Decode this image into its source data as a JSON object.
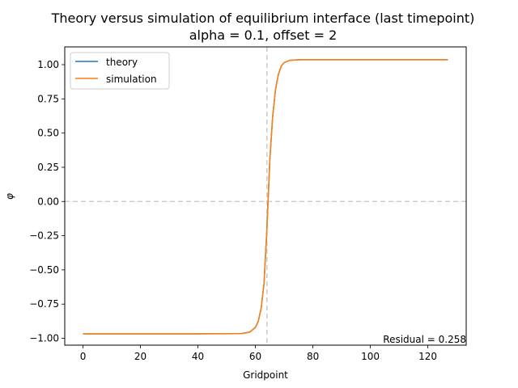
{
  "chart_data": {
    "type": "line",
    "title": "Theory versus simulation of equilibrium interface (last timepoint)",
    "subtitle": "alpha = 0.1, offset = 2",
    "xlabel": "Gridpoint",
    "ylabel": "φ",
    "xlim": [
      -6.35,
      133.35
    ],
    "ylim": [
      -1.05,
      1.13
    ],
    "xticks": [
      0,
      20,
      40,
      60,
      80,
      100,
      120
    ],
    "xtick_labels": [
      "0",
      "20",
      "40",
      "60",
      "80",
      "100",
      "120"
    ],
    "yticks": [
      -1.0,
      -0.75,
      -0.5,
      -0.25,
      0.0,
      0.25,
      0.5,
      0.75,
      1.0
    ],
    "ytick_labels": [
      "−1.00",
      "−0.75",
      "−0.50",
      "−0.25",
      "0.00",
      "0.25",
      "0.50",
      "0.75",
      "1.00"
    ],
    "grid": false,
    "legend_position": "top-left",
    "reference_lines": {
      "vertical_x": 64,
      "horizontal_y": 0
    },
    "annotation": "Residual = 0.258",
    "series": [
      {
        "name": "theory",
        "color": "#1f77b4",
        "x": [
          0,
          40,
          55,
          58,
          60,
          61,
          62,
          63,
          64,
          65,
          66,
          67,
          68,
          69,
          70,
          72,
          74,
          76,
          80,
          100,
          127
        ],
        "y": [
          -0.967,
          -0.967,
          -0.966,
          -0.955,
          -0.92,
          -0.875,
          -0.78,
          -0.6,
          -0.2,
          0.3,
          0.62,
          0.82,
          0.93,
          0.99,
          1.015,
          1.032,
          1.035,
          1.036,
          1.036,
          1.036,
          1.036
        ]
      },
      {
        "name": "simulation",
        "color": "#ff7f0e",
        "x": [
          0,
          40,
          55,
          58,
          60,
          61,
          62,
          63,
          64,
          65,
          66,
          67,
          68,
          69,
          70,
          72,
          74,
          76,
          80,
          100,
          127
        ],
        "y": [
          -0.967,
          -0.967,
          -0.966,
          -0.955,
          -0.92,
          -0.875,
          -0.78,
          -0.6,
          -0.2,
          0.3,
          0.62,
          0.82,
          0.93,
          0.99,
          1.015,
          1.032,
          1.035,
          1.036,
          1.036,
          1.036,
          1.036
        ]
      }
    ]
  }
}
